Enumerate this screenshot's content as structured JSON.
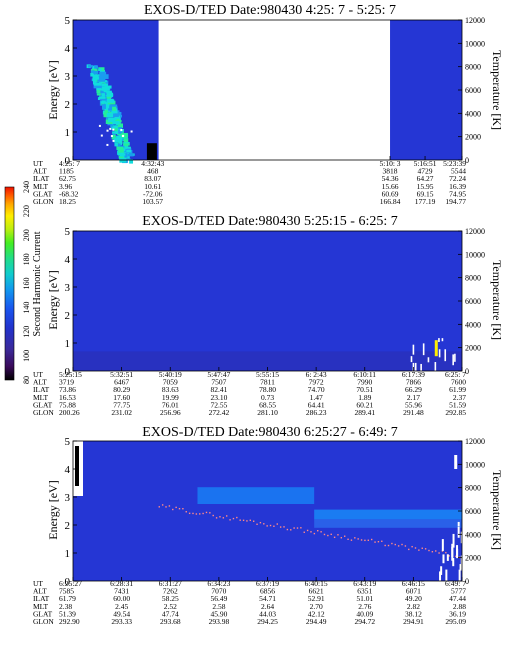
{
  "chart_data": [
    {
      "type": "heatmap",
      "title": "EXOS-D/TED   Date:980430  4:25: 7 - 5:25: 7",
      "ylabel": "Energy [eV]",
      "y2label": "Temperature [K]",
      "ylim": [
        0,
        5
      ],
      "y2lim": [
        0,
        12000
      ],
      "yticks": [
        "0",
        "1",
        "2",
        "3",
        "4",
        "5"
      ],
      "y2ticks": [
        "0",
        "2000",
        "4000",
        "6000",
        "8000",
        "10000",
        "12000"
      ],
      "data_intervals": [
        {
          "start_frac": 0.0,
          "end_frac": 0.22
        },
        {
          "start_frac": 0.815,
          "end_frac": 1.0
        }
      ],
      "row_labels": [
        "UT",
        "ALT",
        "ILAT",
        "MLT",
        "GLAT",
        "GLON"
      ],
      "columns": [
        {
          "frac": 0.0,
          "values": [
            "4:25: 7",
            "1185",
            "62.75",
            "3.96",
            "-68.32",
            "18.25"
          ]
        },
        {
          "frac": 0.205,
          "values": [
            "4:32:43",
            "468",
            "83.07",
            "10.61",
            "-72.06",
            "103.57"
          ]
        },
        {
          "frac": 0.815,
          "values": [
            "5:10: 3",
            "3818",
            "54.36",
            "15.66",
            "60.69",
            "166.84"
          ]
        },
        {
          "frac": 0.905,
          "values": [
            "5:16:51",
            "4729",
            "64.27",
            "15.95",
            "69.15",
            "177.19"
          ]
        },
        {
          "frac": 1.0,
          "values": [
            "5:23:39",
            "5544",
            "72.24",
            "16.39",
            "74.95",
            "194.77"
          ]
        }
      ]
    },
    {
      "type": "heatmap",
      "title": "EXOS-D/TED   Date:980430  5:25:15 - 6:25: 7",
      "ylabel": "Energy [eV]",
      "y2label": "Temperature [K]",
      "ylim": [
        0,
        5
      ],
      "y2lim": [
        0,
        12000
      ],
      "yticks": [
        "0",
        "1",
        "2",
        "3",
        "4",
        "5"
      ],
      "y2ticks": [
        "0",
        "2000",
        "4000",
        "6000",
        "8000",
        "10000",
        "12000"
      ],
      "row_labels": [
        "UT",
        "ALT",
        "ILAT",
        "MLT",
        "GLAT",
        "GLON"
      ],
      "columns": [
        {
          "frac": 0.0,
          "values": [
            "5:25:15",
            "3719",
            "73.86",
            "16.53",
            "75.88",
            "200.26"
          ]
        },
        {
          "frac": 0.125,
          "values": [
            "5:32:51",
            "6467",
            "80.29",
            "17.60",
            "77.75",
            "231.02"
          ]
        },
        {
          "frac": 0.25,
          "values": [
            "5:40:19",
            "7059",
            "83.63",
            "19.99",
            "76.01",
            "256.96"
          ]
        },
        {
          "frac": 0.375,
          "values": [
            "5:47:47",
            "7507",
            "82.41",
            "23.10",
            "72.55",
            "272.42"
          ]
        },
        {
          "frac": 0.5,
          "values": [
            "5:55:15",
            "7811",
            "78.80",
            "0.73",
            "68.55",
            "281.10"
          ]
        },
        {
          "frac": 0.625,
          "values": [
            "6: 2:43",
            "7972",
            "74.70",
            "1.47",
            "64.41",
            "286.23"
          ]
        },
        {
          "frac": 0.75,
          "values": [
            "6:10:11",
            "7990",
            "70.51",
            "1.89",
            "60.21",
            "289.41"
          ]
        },
        {
          "frac": 0.875,
          "values": [
            "6:17:39",
            "7866",
            "66.29",
            "2.17",
            "55.96",
            "291.48"
          ]
        },
        {
          "frac": 1.0,
          "values": [
            "6:25: 7",
            "7600",
            "61.99",
            "2.37",
            "51.59",
            "292.85"
          ]
        }
      ]
    },
    {
      "type": "heatmap",
      "title": "EXOS-D/TED   Date:980430  6:25:27 - 6:49: 7",
      "ylabel": "Energy [eV]",
      "y2label": "Temperature [K]",
      "ylim": [
        0,
        5
      ],
      "y2lim": [
        0,
        12000
      ],
      "yticks": [
        "0",
        "1",
        "2",
        "3",
        "4",
        "5"
      ],
      "y2ticks": [
        "0",
        "2000",
        "4000",
        "6000",
        "8000",
        "10000",
        "12000"
      ],
      "row_labels": [
        "UT",
        "ALT",
        "ILAT",
        "MLT",
        "GLAT",
        "GLON"
      ],
      "columns": [
        {
          "frac": 0.0,
          "values": [
            "6:25:27",
            "7585",
            "61.79",
            "2.38",
            "51.39",
            "292.90"
          ]
        },
        {
          "frac": 0.125,
          "values": [
            "6:28:31",
            "7431",
            "60.00",
            "2.45",
            "49.54",
            "293.33"
          ]
        },
        {
          "frac": 0.25,
          "values": [
            "6:31:27",
            "7262",
            "58.25",
            "2.52",
            "47.74",
            "293.68"
          ]
        },
        {
          "frac": 0.375,
          "values": [
            "6:34:23",
            "7070",
            "56.49",
            "2.58",
            "45.90",
            "293.98"
          ]
        },
        {
          "frac": 0.5,
          "values": [
            "6:37:19",
            "6856",
            "54.71",
            "2.64",
            "44.03",
            "294.25"
          ]
        },
        {
          "frac": 0.625,
          "values": [
            "6:40:15",
            "6621",
            "52.91",
            "2.70",
            "42.12",
            "294.49"
          ]
        },
        {
          "frac": 0.75,
          "values": [
            "6:43:19",
            "6351",
            "51.01",
            "2.76",
            "40.09",
            "294.72"
          ]
        },
        {
          "frac": 0.875,
          "values": [
            "6:46:15",
            "6071",
            "49.20",
            "2.82",
            "38.12",
            "294.91"
          ]
        },
        {
          "frac": 1.0,
          "values": [
            "6:49: 7",
            "5777",
            "47.44",
            "2.88",
            "36.19",
            "295.09"
          ]
        }
      ]
    }
  ],
  "colorbar": {
    "label": "Second Harmonic Current",
    "range": [
      80,
      240
    ],
    "ticks": [
      "80",
      "100",
      "120",
      "140",
      "160",
      "180",
      "200",
      "220",
      "240"
    ],
    "colors": [
      "#000000",
      "#3a0a5a",
      "#3b2a9a",
      "#2233cc",
      "#1a55ee",
      "#1199ee",
      "#11cccc",
      "#22dd88",
      "#44ee22",
      "#bbee11",
      "#ffee00",
      "#ffaa00",
      "#ff5500",
      "#ee1100"
    ]
  }
}
